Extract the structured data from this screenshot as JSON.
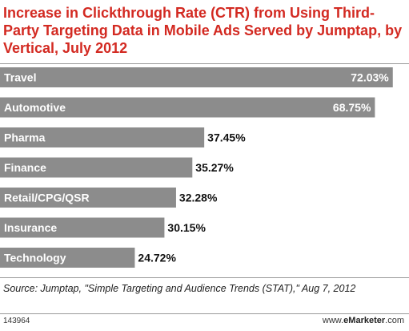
{
  "chart_data": {
    "type": "bar",
    "orientation": "horizontal",
    "title": "Increase in Clickthrough Rate (CTR) from Using Third-Party Targeting Data in Mobile Ads Served by Jumptap, by Vertical, July 2012",
    "categories": [
      "Travel",
      "Automotive",
      "Pharma",
      "Finance",
      "Retail/CPG/QSR",
      "Insurance",
      "Technology"
    ],
    "values": [
      72.03,
      68.75,
      37.45,
      35.27,
      32.28,
      30.15,
      24.72
    ],
    "value_labels": [
      "72.03%",
      "68.75%",
      "37.45%",
      "35.27%",
      "32.28%",
      "30.15%",
      "24.72%"
    ],
    "xlabel": "",
    "ylabel": "",
    "xlim": [
      0,
      75
    ],
    "grid": false,
    "bar_color": "#8c8c8c"
  },
  "footer": {
    "source": "Source: Jumptap, \"Simple Targeting and Audience Trends (STAT),\" Aug 7, 2012",
    "chart_id": "143964",
    "brand_prefix": "www.",
    "brand_name": "eMarketer",
    "brand_suffix": ".com"
  },
  "colors": {
    "title": "#d32a22",
    "bar": "#8c8c8c",
    "label_inside": "#ffffff",
    "label_outside": "#111111"
  }
}
